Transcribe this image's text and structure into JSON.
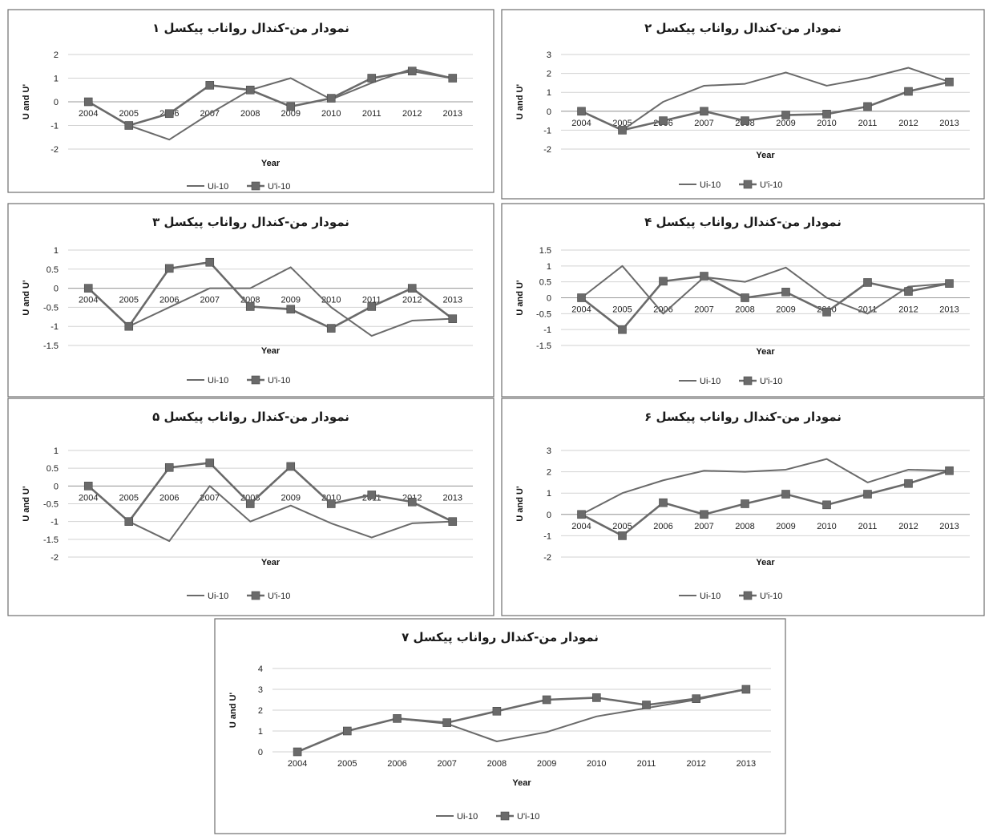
{
  "chart_data": [
    {
      "type": "line",
      "title": "نمودار من-کندال رواناب پیکسل ۱",
      "xlabel": "Year",
      "ylabel": "U and U'",
      "categories": [
        "2004",
        "2005",
        "2006",
        "2007",
        "2008",
        "2009",
        "2010",
        "2011",
        "2012",
        "2013"
      ],
      "yticks": [
        "-2",
        "-1",
        "0",
        "1",
        "2"
      ],
      "ylim": [
        -2,
        2
      ],
      "grid": true,
      "legend": "bottom",
      "series": [
        {
          "name": "Ui-10",
          "values": [
            0,
            -1,
            -1.6,
            -0.5,
            0.5,
            1,
            0.1,
            0.8,
            1.4,
            1
          ]
        },
        {
          "name": "U'i-10",
          "values": [
            0,
            -1,
            -0.5,
            0.7,
            0.5,
            -0.2,
            0.15,
            1,
            1.3,
            1
          ]
        }
      ]
    },
    {
      "type": "line",
      "title": "نمودار من-کندال رواناب پیکسل ۲",
      "xlabel": "Year",
      "ylabel": "U and U'",
      "categories": [
        "2004",
        "2005",
        "2006",
        "2007",
        "2008",
        "2009",
        "2010",
        "2011",
        "2012",
        "2013"
      ],
      "yticks": [
        "-2",
        "-1",
        "0",
        "1",
        "2",
        "3"
      ],
      "ylim": [
        -2,
        3
      ],
      "grid": true,
      "legend": "bottom",
      "series": [
        {
          "name": "Ui-10",
          "values": [
            0,
            -1,
            0.5,
            1.35,
            1.45,
            2.05,
            1.35,
            1.75,
            2.3,
            1.55
          ]
        },
        {
          "name": "U'i-10",
          "values": [
            0,
            -1,
            -0.5,
            0,
            -0.5,
            -0.2,
            -0.15,
            0.25,
            1.05,
            1.55
          ]
        }
      ]
    },
    {
      "type": "line",
      "title": "نمودار من-کندال رواناب پیکسل ۳",
      "xlabel": "Year",
      "ylabel": "U and U'",
      "categories": [
        "2004",
        "2005",
        "2006",
        "2007",
        "2008",
        "2009",
        "2010",
        "2011",
        "2012",
        "2013"
      ],
      "yticks": [
        "-1.5",
        "-1",
        "-0.5",
        "0",
        "0.5",
        "1"
      ],
      "ylim": [
        -1.5,
        1
      ],
      "grid": true,
      "legend": "bottom",
      "series": [
        {
          "name": "Ui-10",
          "values": [
            0,
            -1,
            -0.5,
            0,
            0,
            0.55,
            -0.5,
            -1.25,
            -0.85,
            -0.8
          ]
        },
        {
          "name": "U'i-10",
          "values": [
            0,
            -1,
            0.52,
            0.68,
            -0.48,
            -0.55,
            -1.05,
            -0.48,
            0,
            -0.8
          ]
        }
      ]
    },
    {
      "type": "line",
      "title": "نمودار من-کندال رواناب پیکسل ۴",
      "xlabel": "Year",
      "ylabel": "U and U'",
      "categories": [
        "2004",
        "2005",
        "2006",
        "2007",
        "2008",
        "2009",
        "2010",
        "2011",
        "2012",
        "2013"
      ],
      "yticks": [
        "-1.5",
        "-1",
        "-0.5",
        "0",
        "0.5",
        "1",
        "1.5"
      ],
      "ylim": [
        -1.5,
        1.5
      ],
      "grid": true,
      "legend": "bottom",
      "series": [
        {
          "name": "Ui-10",
          "values": [
            0,
            1,
            -0.5,
            0.65,
            0.5,
            0.95,
            0,
            -0.5,
            0.35,
            0.45
          ]
        },
        {
          "name": "U'i-10",
          "values": [
            0,
            -1,
            0.52,
            0.68,
            0,
            0.18,
            -0.45,
            0.48,
            0.2,
            0.45
          ]
        }
      ]
    },
    {
      "type": "line",
      "title": "نمودار من-کندال رواناب پیکسل ۵",
      "xlabel": "Year",
      "ylabel": "U and U'",
      "categories": [
        "2004",
        "2005",
        "2006",
        "2007",
        "2008",
        "2009",
        "2010",
        "2011",
        "2012",
        "2013"
      ],
      "yticks": [
        "-2",
        "-1.5",
        "-1",
        "-0.5",
        "0",
        "0.5",
        "1"
      ],
      "ylim": [
        -2,
        1
      ],
      "grid": true,
      "legend": "bottom",
      "series": [
        {
          "name": "Ui-10",
          "values": [
            0,
            -1,
            -1.55,
            0,
            -1,
            -0.55,
            -1.05,
            -1.45,
            -1.05,
            -1
          ]
        },
        {
          "name": "U'i-10",
          "values": [
            0,
            -1,
            0.52,
            0.65,
            -0.5,
            0.55,
            -0.5,
            -0.25,
            -0.45,
            -1
          ]
        }
      ]
    },
    {
      "type": "line",
      "title": "نمودار من-کندال رواناب پیکسل ۶",
      "xlabel": "Year",
      "ylabel": "U and U'",
      "categories": [
        "2004",
        "2005",
        "2006",
        "2007",
        "2008",
        "2009",
        "2010",
        "2011",
        "2012",
        "2013"
      ],
      "yticks": [
        "-2",
        "-1",
        "0",
        "1",
        "2",
        "3"
      ],
      "ylim": [
        -2,
        3
      ],
      "grid": true,
      "legend": "bottom",
      "series": [
        {
          "name": "Ui-10",
          "values": [
            0,
            1,
            1.6,
            2.05,
            2,
            2.1,
            2.6,
            1.5,
            2.1,
            2.05
          ]
        },
        {
          "name": "U'i-10",
          "values": [
            0,
            -1,
            0.55,
            0,
            0.5,
            0.95,
            0.45,
            0.95,
            1.45,
            2.05
          ]
        }
      ]
    },
    {
      "type": "line",
      "title": "نمودار من-کندال رواناب پیکسل ۷",
      "xlabel": "Year",
      "ylabel": "U and U'",
      "categories": [
        "2004",
        "2005",
        "2006",
        "2007",
        "2008",
        "2009",
        "2010",
        "2011",
        "2012",
        "2013"
      ],
      "yticks": [
        "0",
        "1",
        "2",
        "3",
        "4"
      ],
      "ylim": [
        0,
        4
      ],
      "grid": true,
      "legend": "bottom",
      "series": [
        {
          "name": "Ui-10",
          "values": [
            0,
            1,
            1.6,
            1.35,
            0.5,
            0.95,
            1.7,
            2.1,
            2.5,
            3
          ]
        },
        {
          "name": "U'i-10",
          "values": [
            0,
            1,
            1.6,
            1.4,
            1.95,
            2.5,
            2.6,
            2.25,
            2.55,
            3
          ]
        }
      ]
    }
  ]
}
